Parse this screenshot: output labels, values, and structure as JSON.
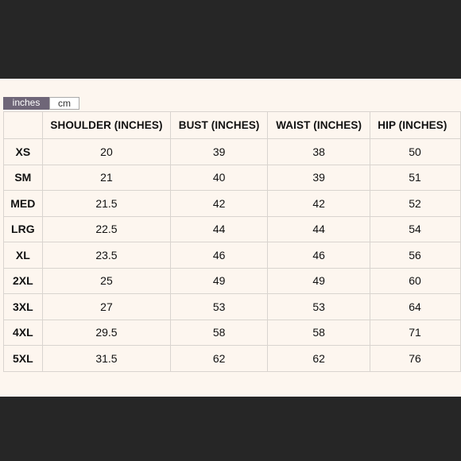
{
  "unit_toggle": {
    "options": [
      {
        "label": "inches",
        "active": true
      },
      {
        "label": "cm",
        "active": false
      }
    ]
  },
  "table": {
    "headers": [
      "",
      "SHOULDER (INCHES)",
      "BUST (INCHES)",
      "WAIST (INCHES)",
      "HIP (INCHES)"
    ],
    "rows": [
      {
        "size": "XS",
        "values": [
          "20",
          "39",
          "38",
          "50"
        ]
      },
      {
        "size": "SM",
        "values": [
          "21",
          "40",
          "39",
          "51"
        ]
      },
      {
        "size": "MED",
        "values": [
          "21.5",
          "42",
          "42",
          "52"
        ]
      },
      {
        "size": "LRG",
        "values": [
          "22.5",
          "44",
          "44",
          "54"
        ]
      },
      {
        "size": "XL",
        "values": [
          "23.5",
          "46",
          "46",
          "56"
        ]
      },
      {
        "size": "2XL",
        "values": [
          "25",
          "49",
          "49",
          "60"
        ]
      },
      {
        "size": "3XL",
        "values": [
          "27",
          "53",
          "53",
          "64"
        ]
      },
      {
        "size": "4XL",
        "values": [
          "29.5",
          "58",
          "58",
          "71"
        ]
      },
      {
        "size": "5XL",
        "values": [
          "31.5",
          "62",
          "62",
          "76"
        ]
      }
    ]
  },
  "colors": {
    "background": "#262626",
    "panel": "#fdf6ef",
    "active_toggle": "#6f6678",
    "grid_line": "#d9d4cf"
  }
}
